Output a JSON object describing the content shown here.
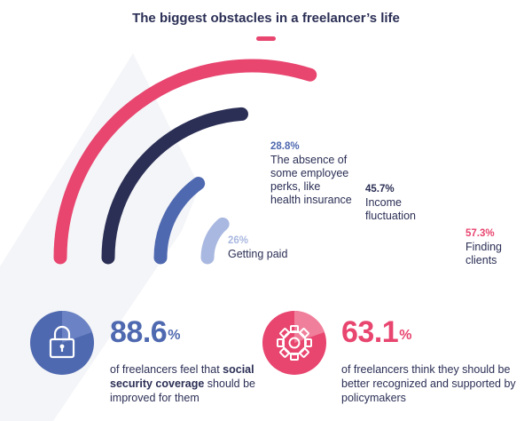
{
  "title": "The biggest obstacles in a freelancer’s life",
  "colors": {
    "accent": "#e8456f",
    "navy": "#2b2f55",
    "blue": "#4f69b0",
    "light_blue": "#a9b8e0"
  },
  "chart_data": {
    "type": "radial-bar",
    "title": "The biggest obstacles in a freelancer’s life",
    "unit": "%",
    "series": [
      {
        "pct": "57.3%",
        "label": "Finding clients",
        "value": 57.3,
        "color": "#e8456f"
      },
      {
        "pct": "45.7%",
        "label": "Income fluctuation",
        "value": 45.7,
        "color": "#2b2f55"
      },
      {
        "pct": "28.8%",
        "label": "The absence of some employee perks, like health insurance",
        "value": 28.8,
        "color": "#4f69b0"
      },
      {
        "pct": "26%",
        "label": "Getting paid",
        "value": 26,
        "color": "#a9b8e0"
      }
    ]
  },
  "stats": [
    {
      "icon": "padlock-icon",
      "value": "88.6",
      "sign": "%",
      "color": "#4f69b0",
      "text_before": "of freelancers feel that ",
      "text_bold": "social security coverage",
      "text_after": " should be improved for them"
    },
    {
      "icon": "gear-icon",
      "value": "63.1",
      "sign": "%",
      "color": "#e8456f",
      "text": "of freelancers think they should be better recognized and supported by policymakers"
    }
  ]
}
